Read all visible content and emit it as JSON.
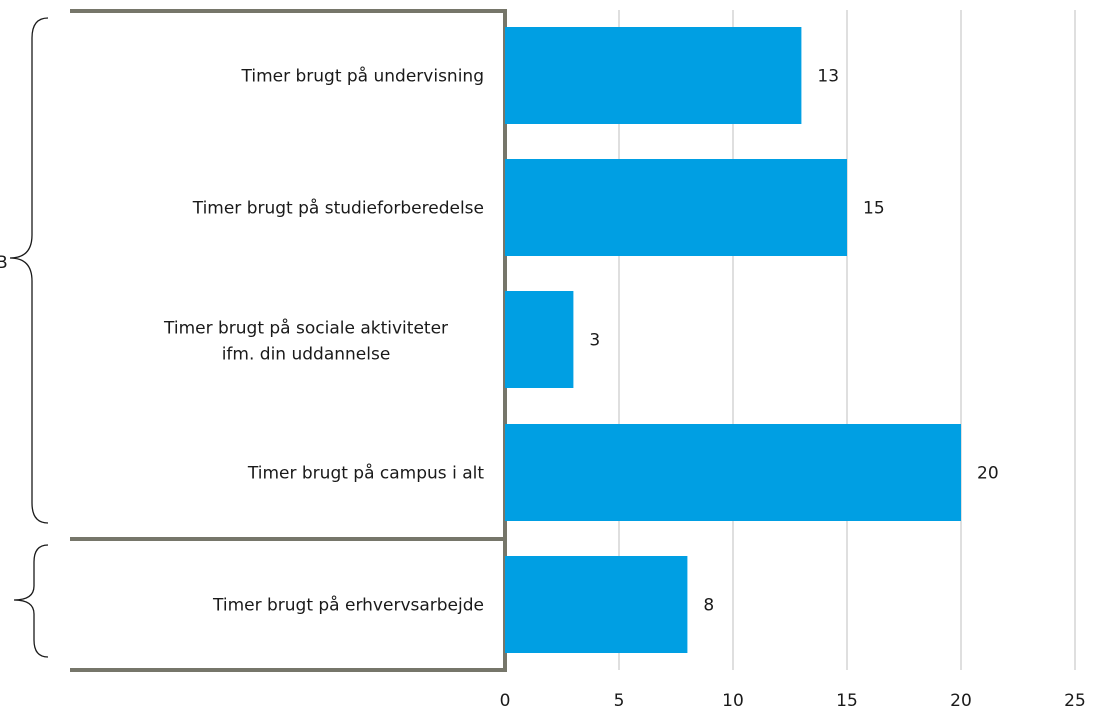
{
  "chart_data": {
    "type": "bar",
    "orientation": "horizontal",
    "categories": [
      "Timer brugt på undervisning",
      "Timer brugt på studieforberedelse",
      "Timer brugt på sociale aktiviteter ifm. din uddannelse",
      "Timer brugt på campus i alt",
      "Timer brugt på erhvervsarbejde"
    ],
    "category_lines": [
      [
        "Timer brugt på undervisning"
      ],
      [
        "Timer brugt på studieforberedelse"
      ],
      [
        "Timer brugt på sociale aktiviteter",
        "ifm. din uddannelse"
      ],
      [
        "Timer brugt på campus i alt"
      ],
      [
        "Timer brugt på erhvervsarbejde"
      ]
    ],
    "values": [
      13,
      15,
      3,
      20,
      8
    ],
    "data_labels": [
      "13",
      "15",
      "3",
      "20",
      "8"
    ],
    "xlim": [
      0,
      25
    ],
    "xticks": [
      "0",
      "5",
      "10",
      "15",
      "20",
      "25"
    ],
    "grid": true,
    "bar_color": "#009fe3",
    "grid_color": "#bfbfbf",
    "frame_color": "#76766a",
    "groups": [
      {
        "label": "B",
        "categories": [
          0,
          1,
          2,
          3
        ]
      },
      {
        "label": "",
        "categories": [
          4
        ]
      }
    ]
  }
}
